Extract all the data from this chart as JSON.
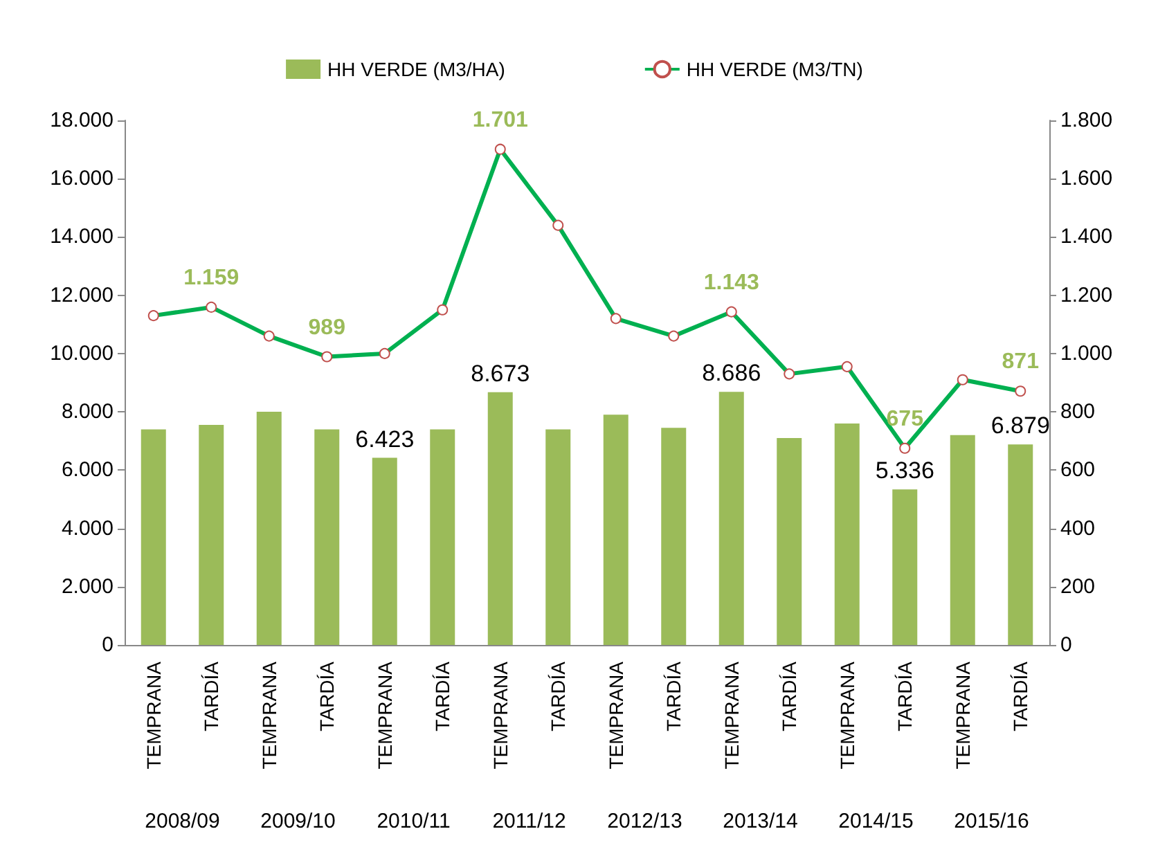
{
  "chart_data": {
    "type": "bar",
    "categories": [
      "TEMPRANA",
      "TARDÍA",
      "TEMPRANA",
      "TARDÍA",
      "TEMPRANA",
      "TARDÍA",
      "TEMPRANA",
      "TARDÍA",
      "TEMPRANA",
      "TARDÍA",
      "TEMPRANA",
      "TARDÍA",
      "TEMPRANA",
      "TARDÍA",
      "TEMPRANA",
      "TARDÍA"
    ],
    "annotations": [
      "2008/09",
      "2009/10",
      "2010/11",
      "2011/12",
      "2012/13",
      "2013/14",
      "2014/15",
      "2015/16"
    ],
    "series": [
      {
        "name": "HH VERDE (M3/HA)",
        "color": "#9bbb59",
        "values": [
          7400,
          7550,
          8000,
          7400,
          6423,
          7400,
          8673,
          7400,
          7900,
          7450,
          8686,
          7100,
          7600,
          5336,
          7200,
          6879
        ],
        "value_labels": [
          null,
          null,
          null,
          null,
          "6.423",
          null,
          "8.673",
          null,
          null,
          null,
          "8.686",
          null,
          null,
          "5.336",
          null,
          "6.879"
        ]
      },
      {
        "name": "HH VERDE (M3/TN)",
        "type": "line",
        "axis": "y2",
        "color": "#00b050",
        "values": [
          1130,
          1159,
          1060,
          989,
          1000,
          1150,
          1701,
          1440,
          1120,
          1060,
          1143,
          930,
          955,
          675,
          910,
          871
        ],
        "value_labels": [
          null,
          "1.159",
          null,
          "989",
          null,
          null,
          "1.701",
          null,
          null,
          null,
          "1.143",
          null,
          null,
          "675",
          null,
          "871"
        ]
      }
    ],
    "ylim": [
      0,
      18000
    ],
    "yticks": [
      {
        "value": 0,
        "label": "0"
      },
      {
        "value": 2000,
        "label": "2.000"
      },
      {
        "value": 4000,
        "label": "4.000"
      },
      {
        "value": 6000,
        "label": "6.000"
      },
      {
        "value": 8000,
        "label": "8.000"
      },
      {
        "value": 10000,
        "label": "10.000"
      },
      {
        "value": 12000,
        "label": "12.000"
      },
      {
        "value": 14000,
        "label": "14.000"
      },
      {
        "value": 16000,
        "label": "16.000"
      },
      {
        "value": 18000,
        "label": "18.000"
      }
    ],
    "y2lim": [
      0,
      1800
    ],
    "y2ticks": [
      {
        "value": 0,
        "label": "0"
      },
      {
        "value": 200,
        "label": "200"
      },
      {
        "value": 400,
        "label": "400"
      },
      {
        "value": 600,
        "label": "600"
      },
      {
        "value": 800,
        "label": "800"
      },
      {
        "value": 1000,
        "label": "1.000"
      },
      {
        "value": 1200,
        "label": "1.200"
      },
      {
        "value": 1400,
        "label": "1.400"
      },
      {
        "value": 1600,
        "label": "1.600"
      },
      {
        "value": 1800,
        "label": "1.800"
      }
    ],
    "grid": false,
    "legend": "top",
    "marker": "circle",
    "line_style": "solid"
  }
}
